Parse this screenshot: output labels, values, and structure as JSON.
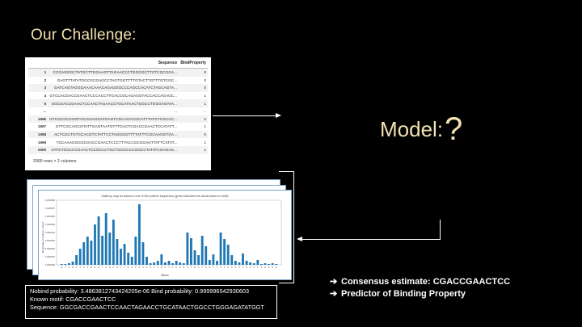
{
  "slide": {
    "title": "Our Challenge:",
    "model_label": "Model:",
    "model_mark": "?"
  },
  "table": {
    "columns": [
      "",
      "Sequence",
      "BindProperty"
    ],
    "rows": [
      {
        "index": "1",
        "sequence": "CCGAGGGCTATGCTTGGAAGTTAGAACCCTGGGGCTTCTCGCGGA...",
        "bind": "0"
      },
      {
        "index": "2",
        "sequence": "GAGTTTATATGGCGCGAGCCTAGTGGTTTTGTACTTGTTTGTCGC...",
        "bind": "0"
      },
      {
        "index": "3",
        "sequence": "GATCAGTAGGGAAACAAACAGAGGGCCCAGCCACATCTAGCAGTA...",
        "bind": "0"
      },
      {
        "index": "4",
        "sequence": "GTCCACGACCGAACTCCCACCTTGACCGCAGAGGTACCACCAGAGC...",
        "bind": "1"
      },
      {
        "index": "5",
        "sequence": "GGCGACCGAACTCCAACTAGAACCTGCATAACTGGCCTGGGAGATA...",
        "bind": "1"
      },
      {
        "index": "...",
        "sequence": "...",
        "bind": "..."
      },
      {
        "index": "1996",
        "sequence": "GTCGCGCGGGTGCGGAGGATGAGTCGCAGACGCATTTATGTCGCCC...",
        "bind": "0"
      },
      {
        "index": "1997",
        "sequence": "GTTCGCAGCGTATTGAGTAATGTTTGACTCGACCGAACTCCATATT...",
        "bind": "1"
      },
      {
        "index": "1998",
        "sequence": "ACTCGCTGTCCACGTCTATTCCTAGGGGTTTTATTTCGCAAGGTGA...",
        "bind": "0"
      },
      {
        "index": "1999",
        "sequence": "TGCAAAGGGGCGACCGAACTCCCTTTACCGCGGAGTTATTCATAT...",
        "bind": "1"
      },
      {
        "index": "2000",
        "sequence": "AATGTCGACCGAACTCCGCACTGCTGGCCCCGGCCTATATCGAGAG...",
        "bind": "1"
      }
    ],
    "footer": "2000 rows × 2 columns"
  },
  "chart_data": {
    "type": "bar",
    "title": "Saliency map for bases in one of the positive sequences (green indicates the actual bases in motif)",
    "xlabel": "Bases",
    "ylabel": "Magnitude of saliency values",
    "ylim": [
      0,
      8e-07
    ],
    "yticks": [
      "0.0000008",
      "0.0000007",
      "0.0000006",
      "0.0000005",
      "0.0000004",
      "0.0000003",
      "0.0000002",
      "0.0000001",
      "0.0000000"
    ],
    "categories": [
      "G",
      "T",
      "C",
      "G",
      "C",
      "T",
      "C",
      "A",
      "G",
      "C",
      "G",
      "T",
      "A",
      "G",
      "C",
      "A",
      "C",
      "T",
      "G",
      "G",
      "C",
      "A",
      "C",
      "G",
      "A",
      "C",
      "T",
      "G",
      "G",
      "T",
      "C",
      "C",
      "A",
      "G",
      "C",
      "T",
      "G",
      "C",
      "T",
      "G",
      "G",
      "C",
      "T",
      "C",
      "A",
      "C",
      "A",
      "A",
      "C",
      "C",
      "G",
      "A",
      "C",
      "T",
      "T",
      "G",
      "C",
      "C",
      "G"
    ],
    "values": [
      1e-08,
      1e-08,
      2e-08,
      4e-08,
      1.2e-07,
      2e-07,
      2.8e-07,
      3.5e-07,
      3e-07,
      5e-07,
      6e-07,
      3.6e-07,
      6.4e-07,
      4e-07,
      5.6e-07,
      3.2e-07,
      2e-07,
      2.6e-07,
      1.5e-07,
      1e-07,
      3.5e-07,
      7.5e-07,
      2.8e-07,
      1e-07,
      2e-08,
      3e-08,
      5e-08,
      1.3e-07,
      3e-08,
      5e-08,
      2e-08,
      5e-08,
      3e-08,
      2e-08,
      4e-07,
      3.3e-07,
      1.8e-07,
      1.2e-07,
      3.6e-07,
      2.3e-07,
      6e-08,
      1.3e-07,
      5e-08,
      4e-07,
      3.2e-07,
      2.5e-07,
      1.2e-07,
      5e-08,
      3e-08,
      1.4e-07,
      5e-08,
      3e-08,
      2e-08,
      6e-08,
      1e-08,
      2e-08,
      1e-08,
      2e-08,
      1e-08
    ],
    "colors": {
      "bar": "#1f77b4"
    }
  },
  "output": {
    "line1": "Nobind probability: 3.4863812743424205e-06 Bind probability: 0.999996542930603",
    "line2": " Known motif: CGACCGAACTCC",
    "line3": "Sequence: GGCGACCGAACTCCAACTAGAACCTGCATAACTGGCCTGGGAGATATGGT"
  },
  "bullets": [
    {
      "mark": "➔",
      "text": "Consensus estimate: CGACCGAACTCC"
    },
    {
      "mark": "➔",
      "text": "Predictor of Binding Property"
    }
  ],
  "colors": {
    "background": "#000000",
    "title": "#f2e3b0",
    "bar": "#1f77b4"
  }
}
